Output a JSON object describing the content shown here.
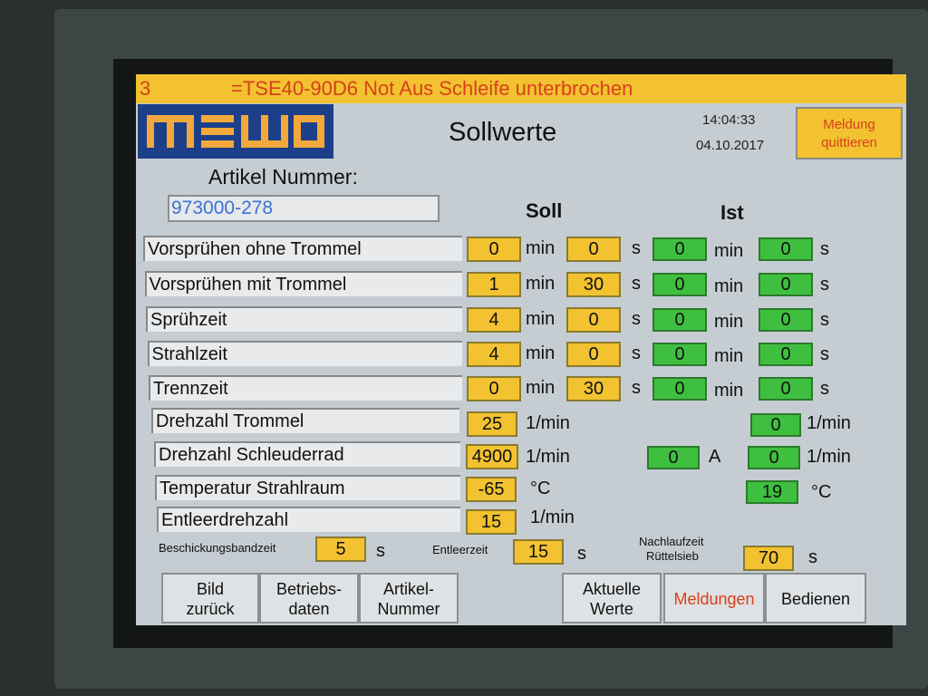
{
  "alarm": {
    "number": "3",
    "text": "=TSE40-90D6 Not Aus Schleife unterbrochen"
  },
  "header": {
    "logo": "mewo",
    "title": "Sollwerte",
    "time": "14:04:33",
    "date": "04.10.2017",
    "ack_button": "Meldung quittieren"
  },
  "article": {
    "label": "Artikel Nummer:",
    "value": "973000-278"
  },
  "columns": {
    "soll": "Soll",
    "ist": "Ist"
  },
  "time_rows": [
    {
      "label": "Vorsprühen ohne Trommel",
      "soll_min": "0",
      "soll_s": "0",
      "ist_min": "0",
      "ist_s": "0"
    },
    {
      "label": "Vorsprühen mit Trommel",
      "soll_min": "1",
      "soll_s": "30",
      "ist_min": "0",
      "ist_s": "0"
    },
    {
      "label": "Sprühzeit",
      "soll_min": "4",
      "soll_s": "0",
      "ist_min": "0",
      "ist_s": "0"
    },
    {
      "label": "Strahlzeit",
      "soll_min": "4",
      "soll_s": "0",
      "ist_min": "0",
      "ist_s": "0"
    },
    {
      "label": "Trennzeit",
      "soll_min": "0",
      "soll_s": "30",
      "ist_min": "0",
      "ist_s": "0"
    }
  ],
  "units": {
    "min": "min",
    "s": "s",
    "rpm": "1/min",
    "amp": "A",
    "celsius": "°C"
  },
  "drehzahl_trommel": {
    "label": "Drehzahl Trommel",
    "soll": "25",
    "ist": "0"
  },
  "drehzahl_schleuderrad": {
    "label": "Drehzahl Schleuderrad",
    "soll": "4900",
    "ist_a": "0",
    "ist": "0"
  },
  "temperatur": {
    "label": "Temperatur Strahlraum",
    "soll": "-65",
    "ist": "19"
  },
  "entleerdrehzahl": {
    "label": "Entleerdrehzahl",
    "soll": "15"
  },
  "bottom": {
    "beschickung_label": "Beschickungsbandzeit",
    "beschickung": "5",
    "entleer_label": "Entleerzeit",
    "entleer": "15",
    "nachlauf_label1": "Nachlaufzeit",
    "nachlauf_label2": "Rüttelsieb",
    "nachlauf": "70"
  },
  "nav": [
    {
      "l1": "Bild",
      "l2": "zurück"
    },
    {
      "l1": "Betriebs-",
      "l2": "daten"
    },
    {
      "l1": "Artikel-",
      "l2": "Nummer"
    },
    {
      "l1": "Aktuelle",
      "l2": "Werte"
    },
    {
      "l1": "Meldungen",
      "l2": ""
    },
    {
      "l1": "Bedienen",
      "l2": ""
    }
  ],
  "colors": {
    "accent_yellow": "#f2c230",
    "ist_green": "#3fbf3f",
    "alarm_red": "#d8401c",
    "logo_blue": "#1d3f8a"
  }
}
